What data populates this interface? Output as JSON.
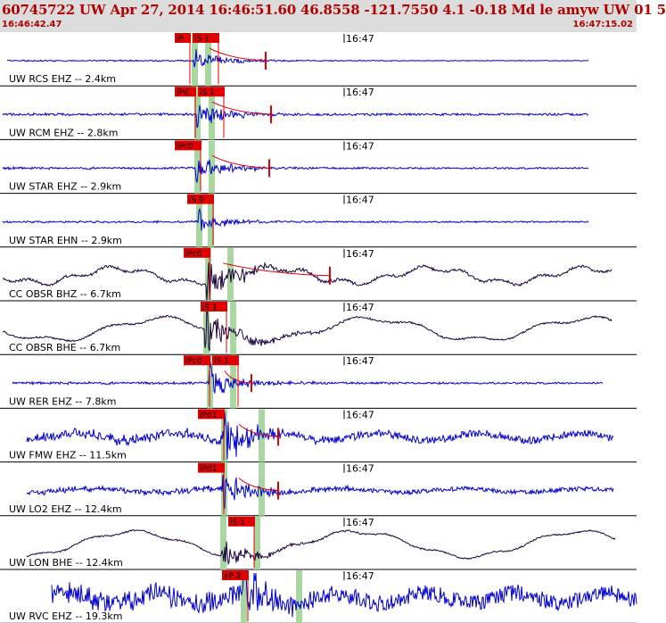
{
  "header": {
    "title": "60745722 UW Apr 27, 2014 16:46:51.60    46.8558 -121.7550  4.1 -0.18 Md le amyw UW 01    5",
    "start_time": "16:46:42.47",
    "end_time": "16:47:15.02",
    "background_color": "#dcdcdc",
    "text_color": "#b00000"
  },
  "minute_label": "16:47",
  "colors": {
    "blue_trace": "#0000cc",
    "dark_trace": "#1a0040",
    "pick_bg": "#e00000",
    "pick_text": "#000000",
    "window": "#a8d8a0",
    "fit": "#dd0000"
  },
  "channels": [
    {
      "label": "UW RCS EHZ -- 2.4km",
      "picks": [
        "iP",
        "iS 1"
      ],
      "trace": "blue"
    },
    {
      "label": "UW RCM EHZ -- 2.8km",
      "picks": [
        "iPd",
        "iS 1"
      ],
      "trace": "blue"
    },
    {
      "label": "UW STAR EHZ -- 2.9km",
      "picks": [
        "iPc0"
      ],
      "trace": "blue"
    },
    {
      "label": "UW STAR EHN -- 2.9km",
      "picks": [
        "iS 0"
      ],
      "trace": "blue"
    },
    {
      "label": "CC OBSR BHZ -- 6.7km",
      "picks": [
        "iPc0"
      ],
      "trace": "dark"
    },
    {
      "label": "CC OBSR BHE -- 6.7km",
      "picks": [
        "iS 1"
      ],
      "trace": "dark"
    },
    {
      "label": "UW RER EHZ -- 7.8km",
      "picks": [
        "iPc0",
        "iS 1"
      ],
      "trace": "blue"
    },
    {
      "label": "UW FMW EHZ -- 11.5km",
      "picks": [
        "iPd1"
      ],
      "trace": "blue"
    },
    {
      "label": "UW LO2 EHZ -- 12.4km",
      "picks": [
        "iPd1"
      ],
      "trace": "blue"
    },
    {
      "label": "UW LON BHE -- 12.4km",
      "picks": [
        "iS 1"
      ],
      "trace": "dark"
    },
    {
      "label": "UW RVC EHZ -- 19.3km",
      "picks": [
        "eP 2"
      ],
      "trace": "blue"
    }
  ]
}
